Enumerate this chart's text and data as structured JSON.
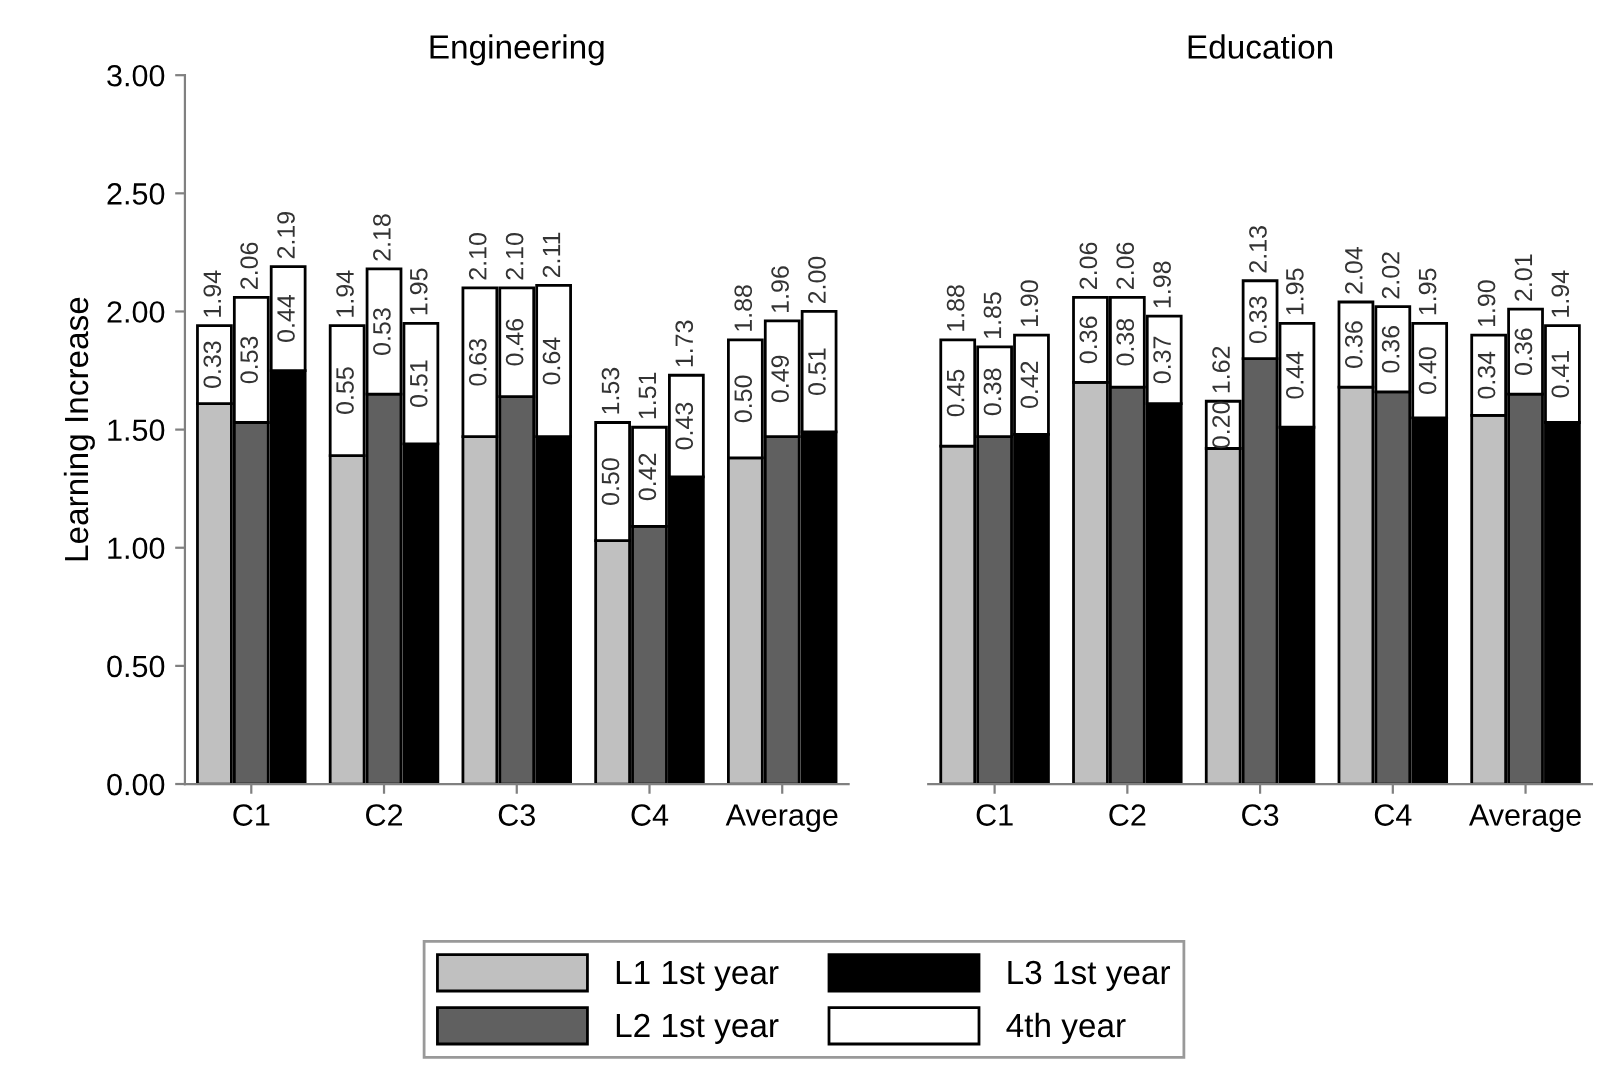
{
  "chart_data": [
    {
      "type": "bar",
      "title": "Engineering",
      "ylabel": "Learning Increase",
      "stacked": true,
      "legend": "bottom",
      "grid": false,
      "categories": [
        null,
        "C1",
        null,
        null,
        "C2",
        null,
        null,
        "C3",
        null,
        null,
        "C4",
        null,
        null,
        "Average",
        null
      ],
      "ylim": [
        0,
        3
      ],
      "yticks": [
        {
          "value": 0,
          "label": "0.00"
        },
        {
          "value": 0.5,
          "label": "0.50"
        },
        {
          "value": 1,
          "label": "1.00"
        },
        {
          "value": 1.5,
          "label": "1.50"
        },
        {
          "value": 2,
          "label": "2.00"
        },
        {
          "value": 2.5,
          "label": "2.50"
        },
        {
          "value": 3,
          "label": "3.00"
        }
      ],
      "series": [
        {
          "name": "L1 1st year",
          "color": "#c0c0c0",
          "values": [
            1.61,
            null,
            null,
            1.39,
            null,
            null,
            1.47,
            null,
            null,
            1.03,
            null,
            null,
            1.38,
            null,
            null
          ]
        },
        {
          "name": "L2 1st year",
          "color": "#606060",
          "values": [
            null,
            1.53,
            null,
            null,
            1.65,
            null,
            null,
            1.64,
            null,
            null,
            1.09,
            null,
            null,
            1.47,
            null
          ]
        },
        {
          "name": "L3 1st year",
          "color": "#000000",
          "values": [
            null,
            null,
            1.75,
            null,
            null,
            1.44,
            null,
            null,
            1.47,
            null,
            null,
            1.3,
            null,
            null,
            1.49
          ]
        },
        {
          "name": "4th year",
          "color": "#ffffff",
          "values": [
            0.33,
            0.53,
            0.44,
            0.55,
            0.53,
            0.51,
            0.63,
            0.46,
            0.64,
            0.5,
            0.42,
            0.43,
            0.5,
            0.49,
            0.51
          ],
          "value_labels": [
            "0.33",
            "0.53",
            "0.44",
            "0.55",
            "0.53",
            "0.51",
            "0.63",
            "0.46",
            "0.64",
            "0.50",
            "0.42",
            "0.43",
            "0.50",
            "0.49",
            "0.51"
          ]
        }
      ],
      "totals": [
        "1.94",
        "2.06",
        "2.19",
        "1.94",
        "2.18",
        "1.95",
        "2.10",
        "2.10",
        "2.11",
        "1.53",
        "1.51",
        "1.73",
        "1.88",
        "1.96",
        "2.00"
      ]
    },
    {
      "type": "bar",
      "title": "Education",
      "stacked": true,
      "legend": "bottom",
      "grid": false,
      "tick_labels": "x",
      "categories": [
        null,
        "C1",
        null,
        null,
        "C2",
        null,
        null,
        "C3",
        null,
        null,
        "C4",
        null,
        null,
        "Average",
        null
      ],
      "ylim": [
        0,
        3
      ],
      "series": [
        {
          "name": "L1 1st year",
          "color": "#c0c0c0",
          "values": [
            1.43,
            null,
            null,
            1.7,
            null,
            null,
            1.42,
            null,
            null,
            1.68,
            null,
            null,
            1.56,
            null,
            null
          ]
        },
        {
          "name": "L2 1st year",
          "color": "#606060",
          "values": [
            null,
            1.47,
            null,
            null,
            1.68,
            null,
            null,
            1.8,
            null,
            null,
            1.66,
            null,
            null,
            1.65,
            null
          ]
        },
        {
          "name": "L3 1st year",
          "color": "#000000",
          "values": [
            null,
            null,
            1.48,
            null,
            null,
            1.61,
            null,
            null,
            1.51,
            null,
            null,
            1.55,
            null,
            null,
            1.53
          ]
        },
        {
          "name": "4th year",
          "color": "#ffffff",
          "values": [
            0.45,
            0.38,
            0.42,
            0.36,
            0.38,
            0.37,
            0.2,
            0.33,
            0.44,
            0.36,
            0.36,
            0.4,
            0.34,
            0.36,
            0.41
          ],
          "value_labels": [
            "0.45",
            "0.38",
            "0.42",
            "0.36",
            "0.38",
            "0.37",
            "0.20",
            "0.33",
            "0.44",
            "0.36",
            "0.36",
            "0.40",
            "0.34",
            "0.36",
            "0.41"
          ]
        }
      ],
      "totals": [
        "1.88",
        "1.85",
        "1.90",
        "2.06",
        "2.06",
        "1.98",
        "1.62",
        "2.13",
        "1.95",
        "2.04",
        "2.02",
        "1.95",
        "1.90",
        "2.01",
        "1.94"
      ]
    }
  ]
}
